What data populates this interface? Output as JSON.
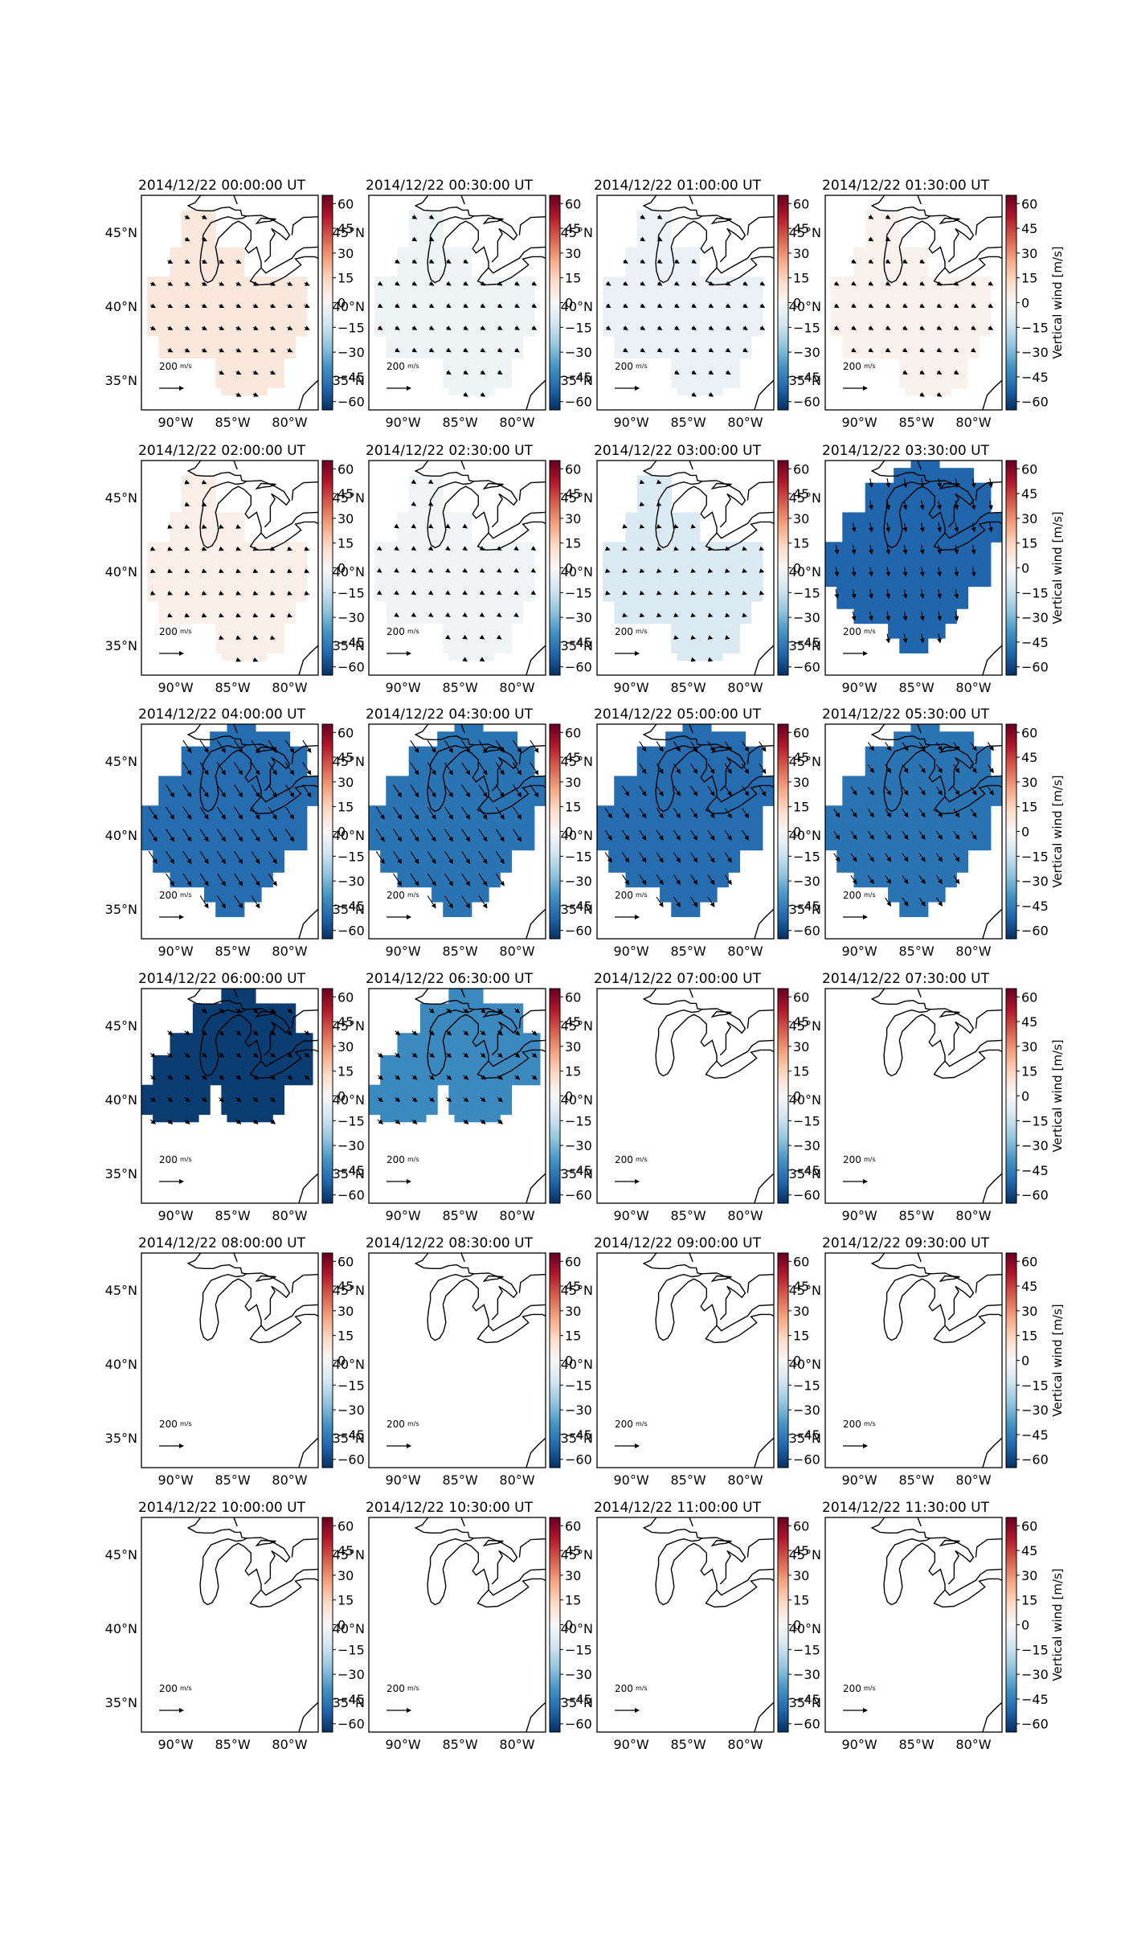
{
  "figure": {
    "panel_titles": [
      "2014/12/22 00:00:00 UT",
      "2014/12/22 00:30:00 UT",
      "2014/12/22 01:00:00 UT",
      "2014/12/22 01:30:00 UT",
      "2014/12/22 02:00:00 UT",
      "2014/12/22 02:30:00 UT",
      "2014/12/22 03:00:00 UT",
      "2014/12/22 03:30:00 UT",
      "2014/12/22 04:00:00 UT",
      "2014/12/22 04:30:00 UT",
      "2014/12/22 05:00:00 UT",
      "2014/12/22 05:30:00 UT",
      "2014/12/22 06:00:00 UT",
      "2014/12/22 06:30:00 UT",
      "2014/12/22 07:00:00 UT",
      "2014/12/22 07:30:00 UT",
      "2014/12/22 08:00:00 UT",
      "2014/12/22 08:30:00 UT",
      "2014/12/22 09:00:00 UT",
      "2014/12/22 09:30:00 UT",
      "2014/12/22 10:00:00 UT",
      "2014/12/22 10:30:00 UT",
      "2014/12/22 11:00:00 UT",
      "2014/12/22 11:30:00 UT"
    ],
    "lon_ticks": [
      "90°W",
      "85°W",
      "80°W"
    ],
    "lat_ticks": [
      "45°N",
      "40°N",
      "35°N"
    ],
    "colorbar_ticks": [
      "60",
      "45",
      "30",
      "15",
      "0",
      "−15",
      "−30",
      "−45",
      "−60"
    ],
    "colorbar_label": "Vertical wind [m/s]",
    "quiver_key_value": "200",
    "quiver_key_unit": "m/s",
    "colormap": [
      "#67001f",
      "#b2182b",
      "#d6604d",
      "#f4a582",
      "#fddbc7",
      "#f7f7f7",
      "#d1e5f0",
      "#92c5de",
      "#4393c3",
      "#2166ac",
      "#053061"
    ]
  },
  "chart_data": {
    "type": "heatmap",
    "subtype": "map grid of vertical wind with horizontal wind vectors",
    "colorbar_range": [
      -65,
      65
    ],
    "lon_range": [
      -93,
      -77.5
    ],
    "lat_range": [
      33,
      47.5
    ],
    "panels": [
      {
        "time": "00:00",
        "vertical_wind": 7,
        "region": "south",
        "vector": [
          6,
          3
        ]
      },
      {
        "time": "00:30",
        "vertical_wind": -3,
        "region": "south",
        "vector": [
          5,
          3
        ]
      },
      {
        "time": "01:00",
        "vertical_wind": -4,
        "region": "south",
        "vector": [
          5,
          3
        ]
      },
      {
        "time": "01:30",
        "vertical_wind": 3,
        "region": "south",
        "vector": [
          5,
          3
        ]
      },
      {
        "time": "02:00",
        "vertical_wind": 4,
        "region": "south",
        "vector": [
          5,
          2
        ]
      },
      {
        "time": "02:30",
        "vertical_wind": -2,
        "region": "south",
        "vector": [
          3,
          2
        ]
      },
      {
        "time": "03:00",
        "vertical_wind": -10,
        "region": "south",
        "vector": [
          3,
          1
        ]
      },
      {
        "time": "03:30",
        "vertical_wind": -52,
        "region": "north",
        "vector": [
          2,
          11
        ]
      },
      {
        "time": "04:00",
        "vertical_wind": -50,
        "region": "north",
        "vector": [
          10,
          15
        ]
      },
      {
        "time": "04:30",
        "vertical_wind": -48,
        "region": "north",
        "vector": [
          10,
          15
        ]
      },
      {
        "time": "05:00",
        "vertical_wind": -50,
        "region": "north",
        "vector": [
          8,
          12
        ]
      },
      {
        "time": "05:30",
        "vertical_wind": -48,
        "region": "north",
        "vector": [
          7,
          10
        ]
      },
      {
        "time": "06:00",
        "vertical_wind": -62,
        "region": "north2",
        "vector": [
          6,
          5
        ]
      },
      {
        "time": "06:30",
        "vertical_wind": -42,
        "region": "north2",
        "vector": [
          6,
          5
        ]
      },
      {
        "time": "07:00",
        "vertical_wind": null,
        "region": "none",
        "vector": null
      },
      {
        "time": "07:30",
        "vertical_wind": null,
        "region": "none",
        "vector": null
      },
      {
        "time": "08:00",
        "vertical_wind": null,
        "region": "none",
        "vector": null
      },
      {
        "time": "08:30",
        "vertical_wind": null,
        "region": "none",
        "vector": null
      },
      {
        "time": "09:00",
        "vertical_wind": null,
        "region": "none",
        "vector": null
      },
      {
        "time": "09:30",
        "vertical_wind": null,
        "region": "none",
        "vector": null
      },
      {
        "time": "10:00",
        "vertical_wind": null,
        "region": "none",
        "vector": null
      },
      {
        "time": "10:30",
        "vertical_wind": null,
        "region": "none",
        "vector": null
      },
      {
        "time": "11:00",
        "vertical_wind": null,
        "region": "none",
        "vector": null
      },
      {
        "time": "11:30",
        "vertical_wind": null,
        "region": "none",
        "vector": null
      }
    ]
  }
}
